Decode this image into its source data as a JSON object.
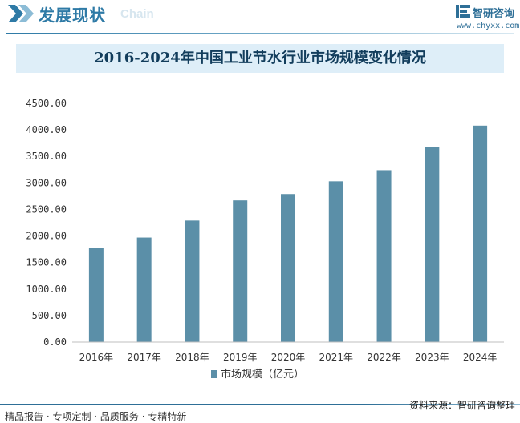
{
  "header": {
    "section_title": "发展现状",
    "section_subtitle": "Chain",
    "brand_name": "智研咨询",
    "brand_url": "www.chyxx.com"
  },
  "chart_data": {
    "type": "bar",
    "title": "2016-2024年中国工业节水行业市场规模变化情况",
    "categories": [
      "2016年",
      "2017年",
      "2018年",
      "2019年",
      "2020年",
      "2021年",
      "2022年",
      "2023年",
      "2024年"
    ],
    "series": [
      {
        "name": "市场规模（亿元）",
        "values": [
          1780,
          1970,
          2290,
          2670,
          2790,
          3030,
          3240,
          3680,
          4080
        ]
      }
    ],
    "ylim": [
      0,
      4500
    ],
    "yticks": [
      "0.00",
      "500.00",
      "1000.00",
      "1500.00",
      "2000.00",
      "2500.00",
      "3000.00",
      "3500.00",
      "4000.00",
      "4500.00"
    ],
    "xlabel": "",
    "ylabel": "",
    "legend": "bottom-center",
    "bar_color": "#5b8fa8"
  },
  "footer": {
    "services": "精品报告 · 专项定制 · 品质服务 · 专精特新",
    "source": "资料来源：智研咨询整理"
  }
}
